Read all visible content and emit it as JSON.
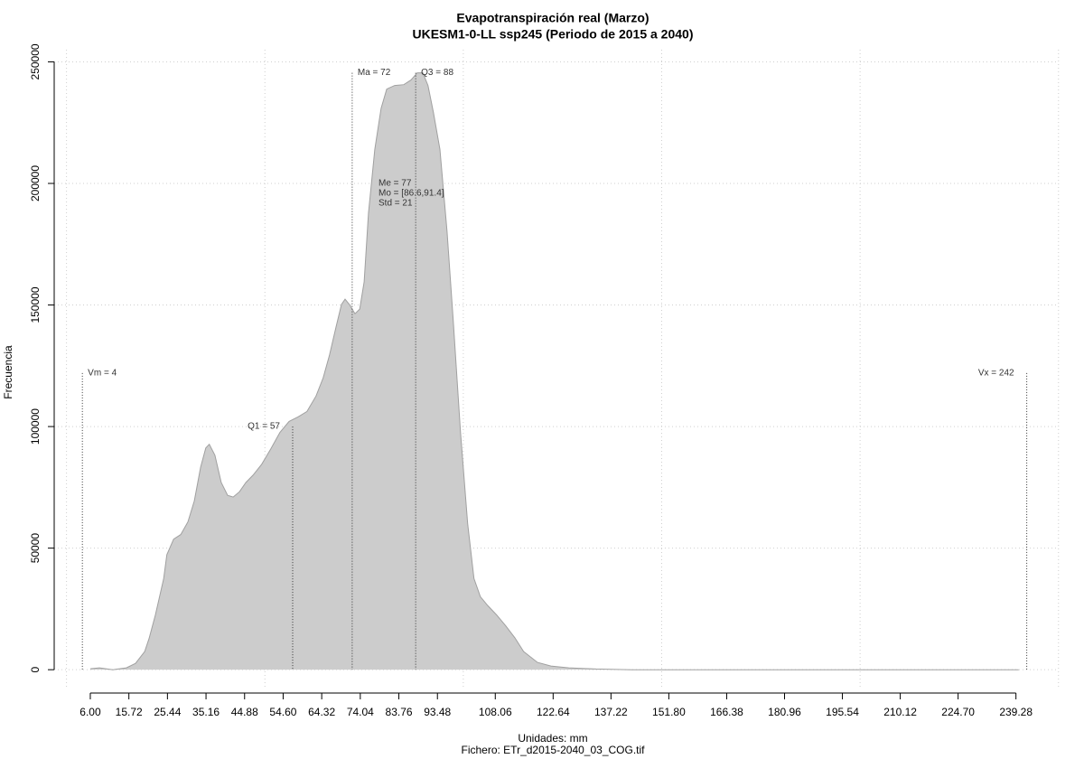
{
  "chart_data": {
    "type": "area",
    "title": "Evapotranspiración real (Marzo)",
    "subtitle": "UKESM1-0-LL ssp245 (Periodo de 2015 a 2040)",
    "x_label": "Unidades: mm",
    "y_label": "Frecuencia",
    "footer": "Fichero: ETr_d2015-2040_03_COG.tif",
    "x": [
      6,
      8.3,
      11.7,
      15.1,
      17.4,
      19.7,
      20.8,
      22.4,
      24.5,
      25.3,
      27,
      28.8,
      30.6,
      32.2,
      33.8,
      35.1,
      36,
      37.4,
      39,
      40.6,
      42,
      43.6,
      45.2,
      47,
      49.2,
      51.5,
      53.8,
      56.1,
      58.4,
      60.6,
      62.9,
      64.7,
      66.3,
      67.9,
      69.3,
      70.2,
      71.3,
      72.7,
      73.9,
      75,
      76.1,
      77.7,
      79.3,
      80.7,
      82.7,
      85,
      86.8,
      88.4,
      89.8,
      91.1,
      92.5,
      94.1,
      95.9,
      97.5,
      99.3,
      101.1,
      102.7,
      104.3,
      106.2,
      108.4,
      110.7,
      113,
      115.2,
      118.7,
      122.1,
      126.6,
      133.5,
      142.5,
      240
    ],
    "series": [
      {
        "color": "#cccccc",
        "values": [
          400,
          750,
          0,
          750,
          2600,
          7500,
          12800,
          22500,
          37500,
          47300,
          53700,
          55600,
          60800,
          69400,
          83300,
          91200,
          92700,
          88200,
          77000,
          71700,
          71000,
          73200,
          77000,
          80000,
          84500,
          90800,
          97600,
          102100,
          104000,
          106200,
          112600,
          120100,
          129500,
          140800,
          150200,
          152400,
          150200,
          146400,
          148300,
          159500,
          187700,
          214000,
          230900,
          238800,
          240300,
          240600,
          242500,
          245500,
          245500,
          240300,
          229000,
          214000,
          180200,
          142700,
          97600,
          60100,
          37500,
          30000,
          26300,
          22500,
          18000,
          13100,
          7500,
          3000,
          1500,
          750,
          300,
          0,
          0
        ]
      }
    ],
    "xlim": [
      -3.1,
      249.6
    ],
    "ylim": [
      -7000,
      255000
    ],
    "xticks": [
      {
        "value": 6,
        "label": "6.00"
      },
      15.72,
      25.44,
      35.16,
      44.88,
      {
        "value": 54.6,
        "label": "54.60"
      },
      64.32,
      74.04,
      83.76,
      93.48,
      108.06,
      122.64,
      137.22,
      {
        "value": 151.8,
        "label": "151.80"
      },
      166.38,
      180.96,
      195.54,
      210.12,
      {
        "value": 224.7,
        "label": "224.70"
      },
      239.28
    ],
    "yticks": [
      0,
      50000,
      100000,
      150000,
      200000,
      250000
    ],
    "xgrid": [
      0,
      50,
      100,
      150,
      200,
      250
    ],
    "grid": true,
    "markers": [
      {
        "label": "Vm = 4",
        "x": 4,
        "top": 122000
      },
      {
        "label": "Q1 = 57",
        "x": 57,
        "top": 100000
      },
      {
        "label": "Ma = 72",
        "x": 72,
        "top": 245500
      },
      {
        "label": "Q3 = 88",
        "x": 88,
        "top": 245500
      },
      {
        "label": "Vx = 242",
        "x": 242,
        "top": 122000
      }
    ],
    "annotations": [
      "Me = 77",
      "Mo = [86.6,91.4]",
      "Std = 21"
    ]
  }
}
